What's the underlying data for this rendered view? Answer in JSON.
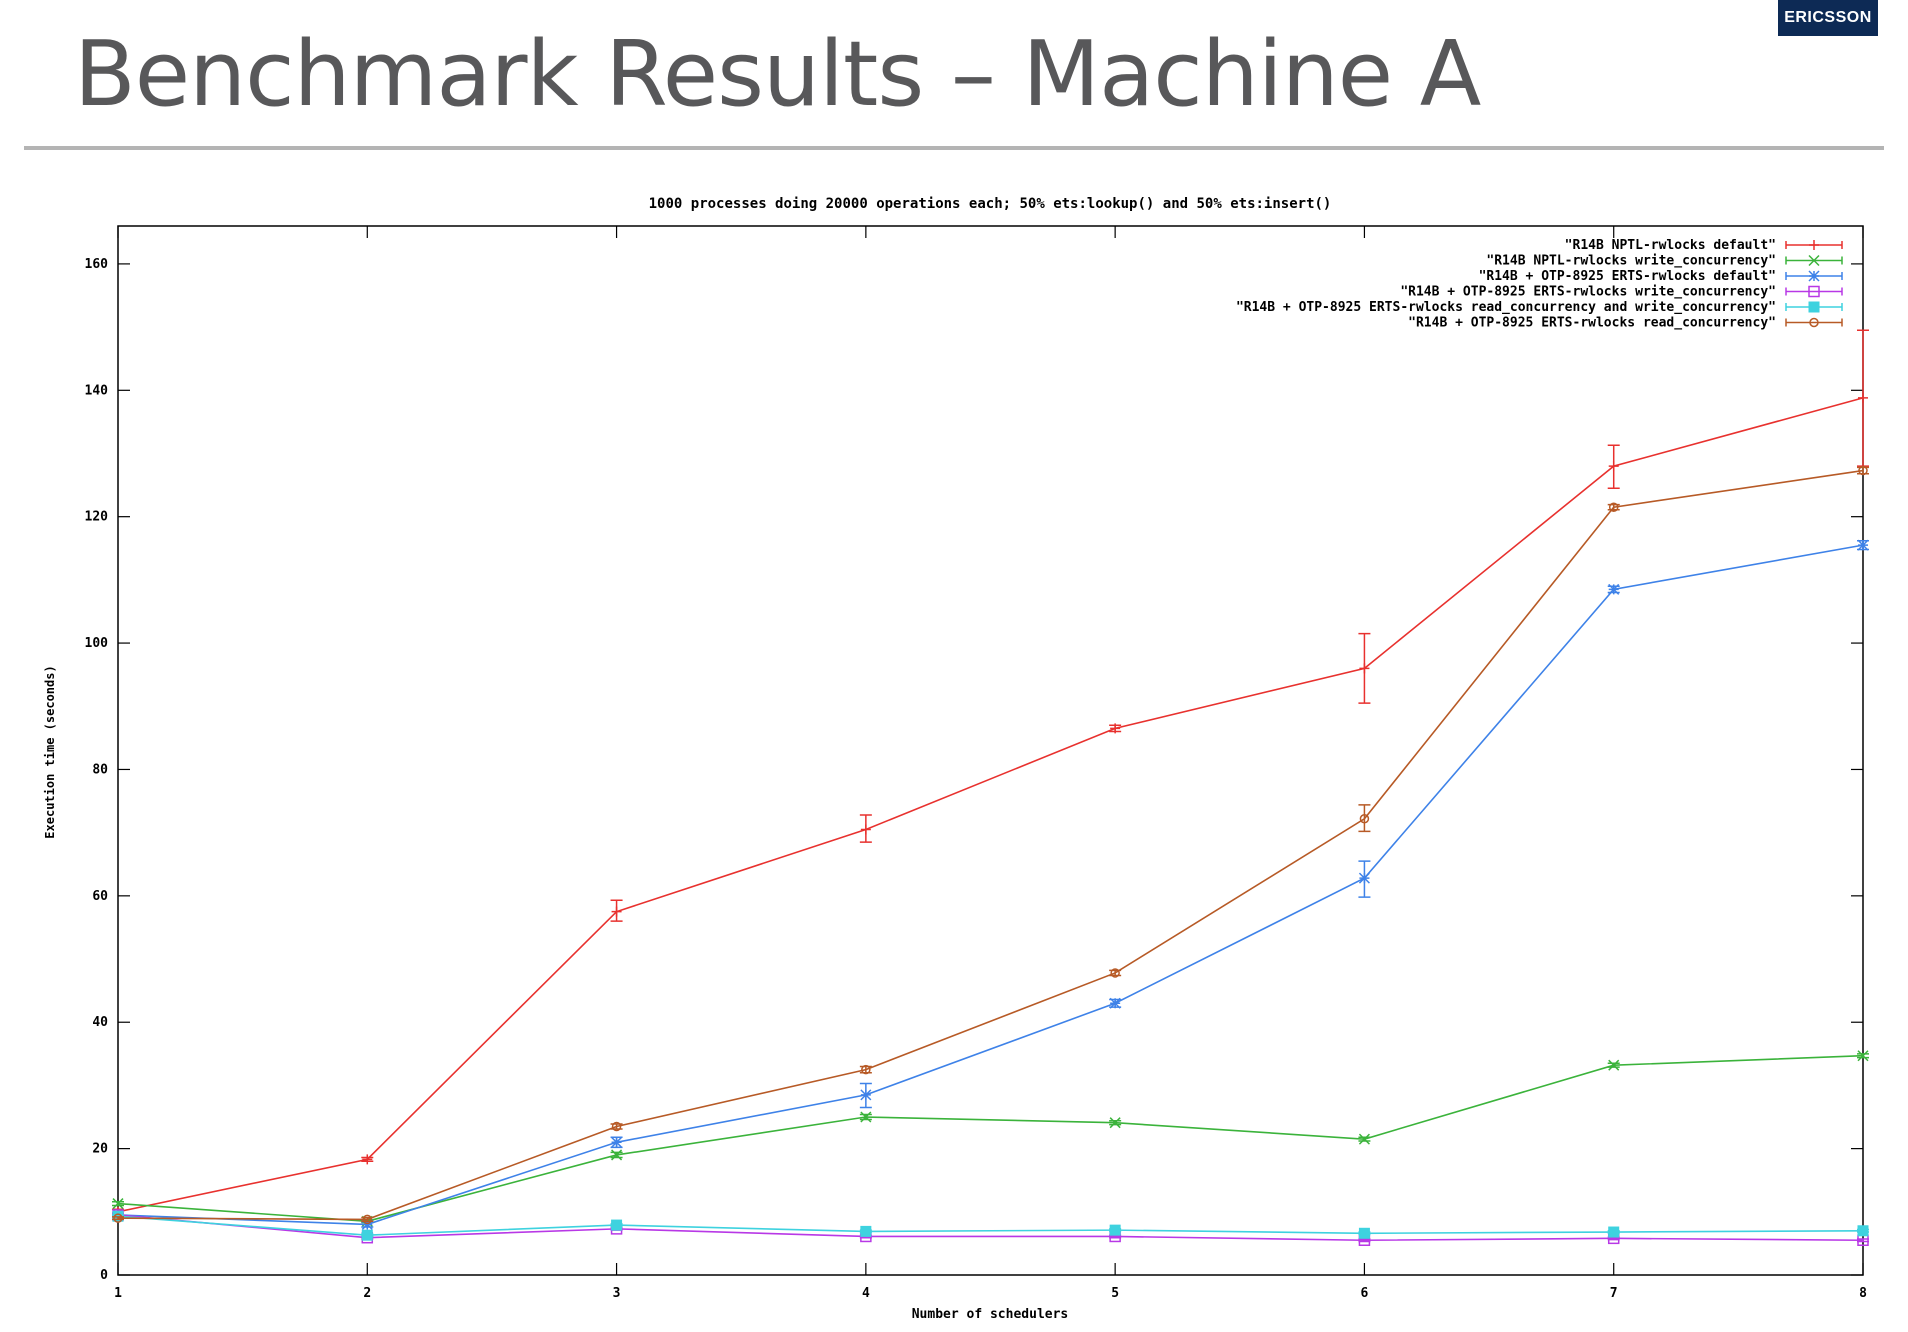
{
  "slide": {
    "title": "Benchmark Results – Machine A",
    "logo_text": "ERICSSON"
  },
  "chart_data": {
    "type": "line",
    "title": "1000 processes doing 20000 operations each; 50% ets:lookup() and 50% ets:insert()",
    "xlabel": "Number of schedulers",
    "ylabel": "Execution time (seconds)",
    "x": [
      1,
      2,
      3,
      4,
      5,
      6,
      7,
      8
    ],
    "xlim": [
      1,
      8
    ],
    "ylim": [
      0,
      166
    ],
    "xticks": [
      1,
      2,
      3,
      4,
      5,
      6,
      7,
      8
    ],
    "yticks": [
      0,
      20,
      40,
      60,
      80,
      100,
      120,
      140,
      160
    ],
    "grid": false,
    "legend_position": "top-right",
    "series": [
      {
        "name": "\"R14B NPTL-rwlocks default\"",
        "color": "#e8312e",
        "marker": "plus",
        "values": [
          10,
          18.3,
          57.5,
          70.5,
          86.5,
          96,
          128,
          138.8
        ],
        "err_low": [
          9.6,
          18.0,
          56,
          68.5,
          86,
          90.5,
          124.5,
          128
        ],
        "err_high": [
          10.4,
          18.6,
          59.3,
          72.8,
          87,
          101.5,
          131.3,
          149.5
        ]
      },
      {
        "name": "\"R14B NPTL-rwlocks write_concurrency\"",
        "color": "#3bb33b",
        "marker": "x",
        "values": [
          11.3,
          8.5,
          19,
          25,
          24.1,
          21.5,
          33.2,
          34.7
        ],
        "err_low": [
          11.0,
          8.3,
          18.6,
          24.6,
          23.8,
          21.2,
          32.9,
          34.4
        ],
        "err_high": [
          11.6,
          8.7,
          19.4,
          25.4,
          24.4,
          21.8,
          33.5,
          35.0
        ]
      },
      {
        "name": "\"R14B + OTP-8925 ERTS-rwlocks default\"",
        "color": "#3e82e8",
        "marker": "star",
        "values": [
          9.5,
          8,
          21,
          28.5,
          43,
          62.8,
          108.5,
          115.5
        ],
        "err_low": [
          9.2,
          7.6,
          20.2,
          26.5,
          42.4,
          59.8,
          108.0,
          114.8
        ],
        "err_high": [
          9.8,
          8.4,
          21.8,
          30.3,
          43.6,
          65.5,
          109.0,
          116.2
        ]
      },
      {
        "name": "\"R14B + OTP-8925 ERTS-rwlocks write_concurrency\"",
        "color": "#b838e6",
        "marker": "square",
        "values": [
          9.5,
          5.9,
          7.3,
          6.1,
          6.1,
          5.5,
          5.8,
          5.5
        ],
        "err_low": [
          9.3,
          5.7,
          7.1,
          5.9,
          5.9,
          5.3,
          5.6,
          5.3
        ],
        "err_high": [
          9.7,
          6.1,
          7.5,
          6.3,
          6.3,
          5.7,
          6.0,
          5.7
        ]
      },
      {
        "name": "\"R14B + OTP-8925 ERTS-rwlocks read_concurrency and write_concurrency\"",
        "color": "#3ed2df",
        "marker": "filled-square",
        "values": [
          9.3,
          6.3,
          7.9,
          6.9,
          7.1,
          6.6,
          6.8,
          7.0
        ],
        "err_low": [
          9.1,
          6.1,
          7.7,
          6.7,
          6.9,
          6.4,
          6.6,
          6.8
        ],
        "err_high": [
          9.5,
          6.5,
          8.1,
          7.1,
          7.3,
          6.8,
          7.0,
          7.2
        ]
      },
      {
        "name": "\"R14B + OTP-8925 ERTS-rwlocks read_concurrency\"",
        "color": "#b75a26",
        "marker": "circle",
        "values": [
          9,
          8.8,
          23.5,
          32.5,
          47.8,
          72.2,
          121.5,
          127.3
        ],
        "err_low": [
          8.8,
          8.5,
          23.1,
          32.0,
          47.4,
          70.2,
          121.1,
          126.8
        ],
        "err_high": [
          9.2,
          9.1,
          23.9,
          33.0,
          48.2,
          74.4,
          121.9,
          127.8
        ]
      }
    ]
  }
}
